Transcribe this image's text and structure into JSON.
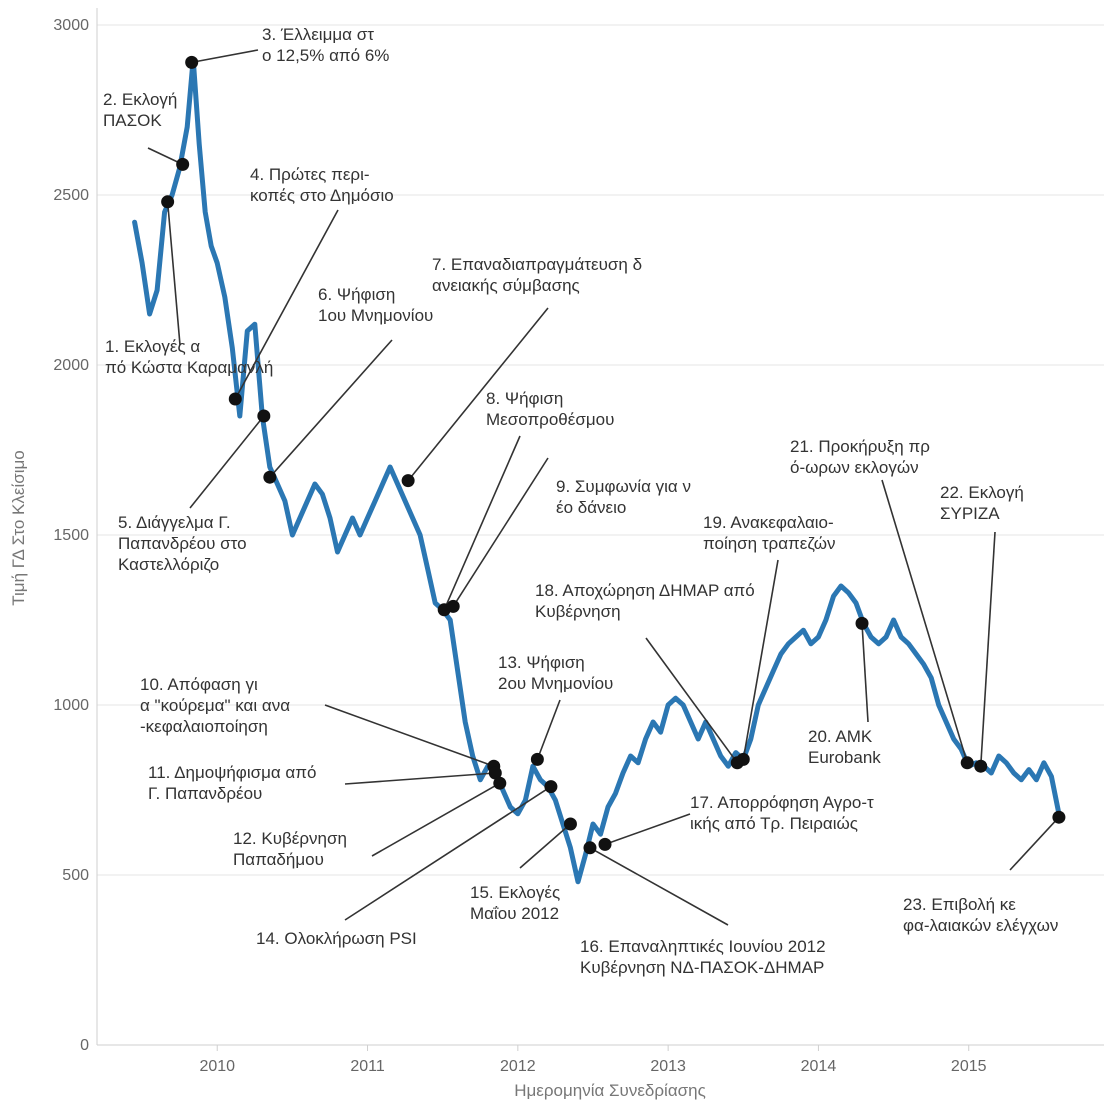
{
  "chart_data": {
    "type": "line",
    "title": "",
    "xlabel": "Ημερομηνία Συνεδρίασης",
    "ylabel": "Τιμή ΓΔ Στο Κλείσιμο",
    "ylim": [
      0,
      3050
    ],
    "xlim": [
      2009.2,
      2015.9
    ],
    "x_ticks": [
      "2010",
      "2011",
      "2012",
      "2013",
      "2014",
      "2015"
    ],
    "y_ticks": [
      "0",
      "500",
      "1000",
      "1500",
      "2000",
      "2500",
      "3000"
    ],
    "grid": "horizontal",
    "line_color": "#2b77b3",
    "series": [
      {
        "x": [
          2009.45,
          2009.5,
          2009.55,
          2009.6,
          2009.65,
          2009.7,
          2009.75,
          2009.8,
          2009.84,
          2009.88,
          2009.92,
          2009.96,
          2010.0,
          2010.05,
          2010.1,
          2010.15,
          2010.2,
          2010.25,
          2010.3,
          2010.35,
          2010.4,
          2010.45,
          2010.5,
          2010.55,
          2010.6,
          2010.65,
          2010.7,
          2010.75,
          2010.8,
          2010.85,
          2010.9,
          2010.95,
          2011.0,
          2011.05,
          2011.1,
          2011.15,
          2011.2,
          2011.25,
          2011.3,
          2011.35,
          2011.4,
          2011.45,
          2011.5,
          2011.55,
          2011.6,
          2011.65,
          2011.7,
          2011.75,
          2011.8,
          2011.85,
          2011.9,
          2011.95,
          2012.0,
          2012.05,
          2012.1,
          2012.15,
          2012.2,
          2012.25,
          2012.3,
          2012.35,
          2012.4,
          2012.45,
          2012.5,
          2012.55,
          2012.6,
          2012.65,
          2012.7,
          2012.75,
          2012.8,
          2012.85,
          2012.9,
          2012.95,
          2013.0,
          2013.05,
          2013.1,
          2013.15,
          2013.2,
          2013.25,
          2013.3,
          2013.35,
          2013.4,
          2013.45,
          2013.5,
          2013.55,
          2013.6,
          2013.65,
          2013.7,
          2013.75,
          2013.8,
          2013.85,
          2013.9,
          2013.95,
          2014.0,
          2014.05,
          2014.1,
          2014.15,
          2014.2,
          2014.25,
          2014.3,
          2014.35,
          2014.4,
          2014.45,
          2014.5,
          2014.55,
          2014.6,
          2014.65,
          2014.7,
          2014.75,
          2014.8,
          2014.85,
          2014.9,
          2014.95,
          2015.0,
          2015.05,
          2015.1,
          2015.15,
          2015.2,
          2015.25,
          2015.3,
          2015.35,
          2015.4,
          2015.45,
          2015.5,
          2015.55,
          2015.6
        ],
        "y": [
          2420,
          2300,
          2150,
          2220,
          2450,
          2500,
          2580,
          2700,
          2900,
          2650,
          2450,
          2350,
          2300,
          2200,
          2050,
          1850,
          2100,
          2120,
          1850,
          1700,
          1650,
          1600,
          1500,
          1550,
          1600,
          1650,
          1620,
          1550,
          1450,
          1500,
          1550,
          1500,
          1550,
          1600,
          1650,
          1700,
          1650,
          1600,
          1550,
          1500,
          1400,
          1300,
          1280,
          1250,
          1100,
          950,
          850,
          780,
          820,
          800,
          750,
          700,
          680,
          720,
          820,
          780,
          760,
          720,
          650,
          580,
          480,
          560,
          650,
          620,
          700,
          740,
          800,
          850,
          830,
          900,
          950,
          920,
          1000,
          1020,
          1000,
          950,
          900,
          950,
          900,
          850,
          820,
          860,
          840,
          900,
          1000,
          1050,
          1100,
          1150,
          1180,
          1200,
          1220,
          1180,
          1200,
          1250,
          1320,
          1350,
          1330,
          1300,
          1240,
          1200,
          1180,
          1200,
          1250,
          1200,
          1180,
          1150,
          1120,
          1080,
          1000,
          950,
          900,
          870,
          820,
          830,
          820,
          800,
          850,
          830,
          800,
          780,
          810,
          780,
          830,
          790,
          680
        ]
      }
    ],
    "events": [
      {
        "label": "1. Εκλογές από Κώστα Καραμανλή",
        "x": 2009.67,
        "y": 2480
      },
      {
        "label": "2. Εκλογή ΠΑΣΟΚ",
        "x": 2009.77,
        "y": 2590
      },
      {
        "label": "3. Έλλειμμα στο 12,5% από 6%",
        "x": 2009.83,
        "y": 2890
      },
      {
        "label": "4. Πρώτες περι-κοπές στο Δημόσιο",
        "x": 2010.12,
        "y": 1900
      },
      {
        "label": "5. Διάγγελμα Γ. Παπανδρέου στο Καστελλόριζο",
        "x": 2010.31,
        "y": 1850
      },
      {
        "label": "6. Ψήφιση 1ου Μνημονίου",
        "x": 2010.35,
        "y": 1670
      },
      {
        "label": "7. Επαναδιαπραγμάτευση δανειακής σύμβασης",
        "x": 2011.27,
        "y": 1660
      },
      {
        "label": "8. Ψήφιση Μεσοπροθέσμου",
        "x": 2011.51,
        "y": 1280
      },
      {
        "label": "9. Συμφωνία για νέο δάνειο",
        "x": 2011.57,
        "y": 1290
      },
      {
        "label": "10. Απόφαση για \"κούρεμα\" και ανα-κεφαλαιοποίηση",
        "x": 2011.84,
        "y": 820
      },
      {
        "label": "11. Δημοψήφισμα από Γ. Παπανδρέου",
        "x": 2011.85,
        "y": 800
      },
      {
        "label": "12. Κυβέρνηση Παπαδήμου",
        "x": 2011.88,
        "y": 770
      },
      {
        "label": "13. Ψήφιση 2ου Μνημονίου",
        "x": 2012.13,
        "y": 840
      },
      {
        "label": "14. Ολοκλήρωση PSI",
        "x": 2012.22,
        "y": 760
      },
      {
        "label": "15. Εκλογές Μαΐου 2012",
        "x": 2012.35,
        "y": 650
      },
      {
        "label": "16. Επαναληπτικές Ιουνίου 2012 Κυβέρνηση ΝΔ-ΠΑΣΟΚ-ΔΗΜΑΡ",
        "x": 2012.48,
        "y": 580
      },
      {
        "label": "17. Απορρόφηση Αγρο-τικής από Τρ. Πειραιώς",
        "x": 2012.58,
        "y": 590
      },
      {
        "label": "18. Αποχώρηση ΔΗΜΑΡ από Κυβέρνηση",
        "x": 2013.46,
        "y": 830
      },
      {
        "label": "19. Ανακεφαλαιο-ποίηση τραπεζών",
        "x": 2013.5,
        "y": 840
      },
      {
        "label": "20. ΑΜΚ Eurobank",
        "x": 2014.29,
        "y": 1240
      },
      {
        "label": "21. Προκήρυξη πρό-ωρων εκλογών",
        "x": 2014.99,
        "y": 830
      },
      {
        "label": "22. Εκλογή ΣΥΡΙΖΑ",
        "x": 2015.08,
        "y": 820
      },
      {
        "label": "23. Επιβολή κεφα-λαιακών ελέγχων",
        "x": 2015.6,
        "y": 670
      }
    ]
  }
}
